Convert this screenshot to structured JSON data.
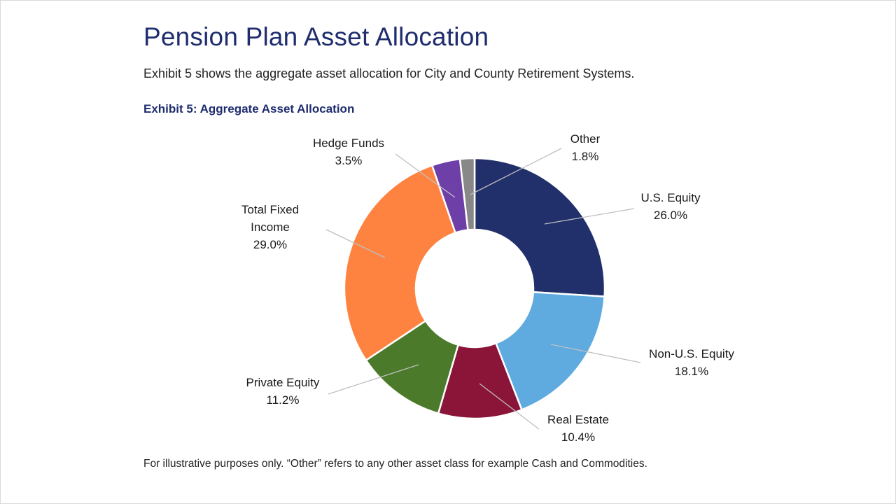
{
  "slide": {
    "title": "Pension Plan Asset Allocation",
    "subtitle": "Exhibit 5 shows the aggregate asset allocation for City and County Retirement Systems.",
    "exhibit_title": "Exhibit 5: Aggregate Asset Allocation",
    "footnote": "For illustrative purposes only. “Other” refers to any other asset class for example Cash and Commodities."
  },
  "chart_data": {
    "type": "pie",
    "subtype": "donut",
    "title": "Exhibit 5: Aggregate Asset Allocation",
    "unit": "%",
    "slices": [
      {
        "label": "U.S. Equity",
        "label_lines": [
          "U.S. Equity"
        ],
        "value": 26.0,
        "value_text": "26.0%",
        "color": "#21306b"
      },
      {
        "label": "Non-U.S. Equity",
        "label_lines": [
          "Non-U.S. Equity"
        ],
        "value": 18.1,
        "value_text": "18.1%",
        "color": "#5fabe0"
      },
      {
        "label": "Real Estate",
        "label_lines": [
          "Real Estate"
        ],
        "value": 10.4,
        "value_text": "10.4%",
        "color": "#8a1538"
      },
      {
        "label": "Private Equity",
        "label_lines": [
          "Private Equity"
        ],
        "value": 11.2,
        "value_text": "11.2%",
        "color": "#4a7a2a"
      },
      {
        "label": "Total Fixed Income",
        "label_lines": [
          "Total Fixed",
          "Income"
        ],
        "value": 29.0,
        "value_text": "29.0%",
        "color": "#ff8340"
      },
      {
        "label": "Hedge Funds",
        "label_lines": [
          "Hedge Funds"
        ],
        "value": 3.5,
        "value_text": "3.5%",
        "color": "#6f3fa8"
      },
      {
        "label": "Other",
        "label_lines": [
          "Other"
        ],
        "value": 1.8,
        "value_text": "1.8%",
        "color": "#888888"
      }
    ],
    "start_angle": "12 o'clock",
    "direction": "clockwise",
    "leader_line_color": "#bfbfbf",
    "legend": "none (data labels with leader lines)"
  }
}
